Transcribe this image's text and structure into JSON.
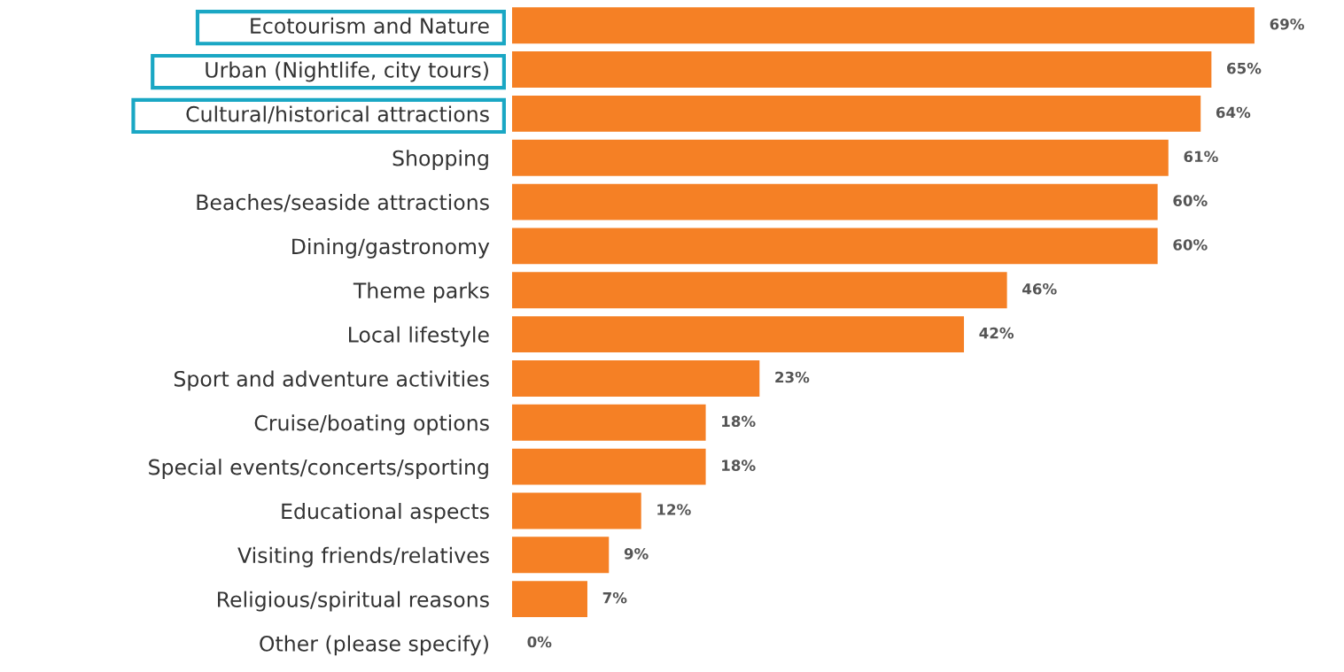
{
  "chart_data": {
    "type": "bar",
    "orientation": "horizontal",
    "categories": [
      "Ecotourism and Nature",
      "Urban (Nightlife, city tours)",
      "Cultural/historical attractions",
      "Shopping",
      "Beaches/seaside attractions",
      "Dining/gastronomy",
      "Theme parks",
      "Local lifestyle",
      "Sport and adventure activities",
      "Cruise/boating options",
      "Special events/concerts/sporting",
      "Educational aspects",
      "Visiting friends/relatives",
      "Religious/spiritual reasons",
      "Other (please specify)"
    ],
    "values": [
      69,
      65,
      64,
      61,
      60,
      60,
      46,
      42,
      23,
      18,
      18,
      12,
      9,
      7,
      0
    ],
    "value_labels": [
      "69%",
      "65%",
      "64%",
      "61%",
      "60%",
      "60%",
      "46%",
      "42%",
      "23%",
      "18%",
      "18%",
      "12%",
      "9%",
      "7%",
      "0%"
    ],
    "color": "#f58025",
    "tick_labels": "y",
    "grid": false,
    "legend": false
  }
}
